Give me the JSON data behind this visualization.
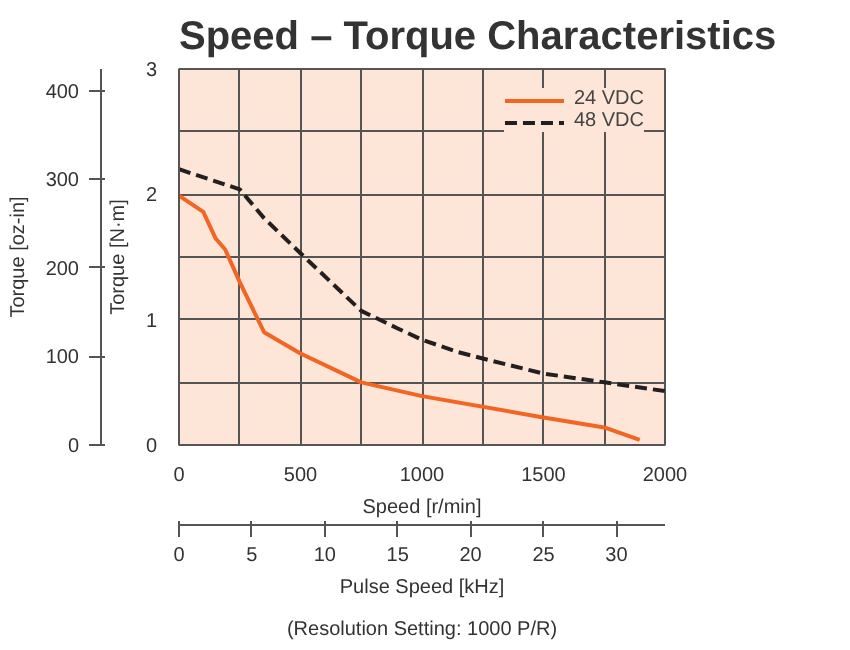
{
  "chart_data": {
    "type": "line",
    "title": "Speed – Torque Characteristics",
    "xlabel": "Speed [r/min]",
    "ylabel": "Torque [N·m]",
    "y2label": "Torque [oz-in]",
    "x2label": "Pulse Speed [kHz]",
    "annotations": [
      "(Resolution Setting: 1000 P/R)"
    ],
    "xlim": [
      0,
      2000
    ],
    "xticks": [
      0,
      {
        "value": 250,
        "label": null
      },
      500,
      {
        "value": 750,
        "label": null
      },
      1000,
      {
        "value": 1250,
        "label": null
      },
      1500,
      {
        "value": 1750,
        "label": null
      },
      2000
    ],
    "ylim": [
      0,
      3
    ],
    "yticks": [
      0,
      {
        "value": 0.5,
        "label": null
      },
      1,
      {
        "value": 1.5,
        "label": null
      },
      2,
      {
        "value": 2.5,
        "label": null
      },
      3
    ],
    "y2lim": [
      0,
      424.8
    ],
    "y2ticks": [
      0,
      100,
      200,
      300,
      400
    ],
    "x2lim": [
      0,
      33.33
    ],
    "x2ticks": [
      0,
      5,
      10,
      15,
      20,
      25,
      30
    ],
    "grid": true,
    "legend": "top right",
    "marker": "none",
    "series": [
      {
        "name": "24 VDC",
        "color": "#f26522",
        "line_style": "solid",
        "x": [
          0,
          100,
          150,
          190,
          250,
          350,
          500,
          750,
          1000,
          1500,
          1750,
          1896
        ],
        "values": [
          1.99,
          1.86,
          1.65,
          1.56,
          1.3,
          0.9,
          0.73,
          0.5,
          0.39,
          0.22,
          0.14,
          0.04
        ]
      },
      {
        "name": "48 VDC",
        "color": "#231f20",
        "line_style": "dashed",
        "x": [
          0,
          250,
          350,
          500,
          750,
          900,
          1000,
          1150,
          1250,
          1500,
          1750,
          2000
        ],
        "values": [
          2.2,
          2.04,
          1.81,
          1.53,
          1.07,
          0.93,
          0.84,
          0.74,
          0.69,
          0.57,
          0.5,
          0.43
        ]
      }
    ]
  }
}
